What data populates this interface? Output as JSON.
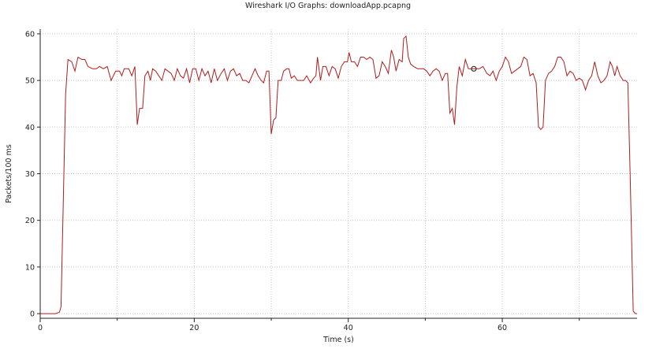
{
  "window": {
    "title": "Wireshark I/O Graphs: downloadApp.pcapng"
  },
  "colors": {
    "series": "#b01c1c",
    "grid": "#c8c8c8",
    "axis": "#222222",
    "background": "#ffffff"
  },
  "chart_data": {
    "type": "line",
    "title": "Wireshark I/O Graphs: downloadApp.pcapng",
    "xlabel": "Time (s)",
    "ylabel": "Packets/100 ms",
    "xlim": [
      0,
      77.5
    ],
    "ylim": [
      -1,
      61
    ],
    "xticks": [
      0,
      20,
      40,
      60
    ],
    "yticks": [
      0,
      10,
      20,
      30,
      40,
      50,
      60
    ],
    "grid": true,
    "legend": "none",
    "series": [
      {
        "color": "#b01c1c",
        "points": [
          [
            0,
            0
          ],
          [
            1,
            0
          ],
          [
            2,
            0
          ],
          [
            2.5,
            0.3
          ],
          [
            2.7,
            1.5
          ],
          [
            3.3,
            47
          ],
          [
            3.6,
            54.5
          ],
          [
            4.1,
            54
          ],
          [
            4.5,
            52
          ],
          [
            4.9,
            55
          ],
          [
            5.4,
            54.5
          ],
          [
            5.8,
            54.5
          ],
          [
            6.2,
            53
          ],
          [
            6.8,
            52.5
          ],
          [
            7.3,
            52.5
          ],
          [
            7.7,
            53
          ],
          [
            8.2,
            52.5
          ],
          [
            8.7,
            53
          ],
          [
            9.2,
            50
          ],
          [
            9.8,
            52
          ],
          [
            10.3,
            52
          ],
          [
            10.6,
            51
          ],
          [
            10.9,
            52.5
          ],
          [
            11.5,
            52.5
          ],
          [
            11.9,
            51
          ],
          [
            12.3,
            53
          ],
          [
            12.6,
            40.5
          ],
          [
            12.9,
            44
          ],
          [
            13.3,
            44
          ],
          [
            13.6,
            51
          ],
          [
            14,
            52
          ],
          [
            14.3,
            50
          ],
          [
            14.6,
            52.5
          ],
          [
            15,
            52
          ],
          [
            15.4,
            51
          ],
          [
            15.8,
            50
          ],
          [
            16.2,
            52.5
          ],
          [
            16.6,
            52
          ],
          [
            17,
            51.5
          ],
          [
            17.4,
            50
          ],
          [
            17.8,
            52.5
          ],
          [
            18.2,
            51
          ],
          [
            18.6,
            50.5
          ],
          [
            19,
            52.5
          ],
          [
            19.4,
            49.5
          ],
          [
            19.8,
            52.5
          ],
          [
            20.2,
            52.5
          ],
          [
            20.6,
            50
          ],
          [
            21,
            52.5
          ],
          [
            21.4,
            51
          ],
          [
            21.8,
            52
          ],
          [
            22.2,
            49.5
          ],
          [
            22.6,
            52.5
          ],
          [
            23,
            50
          ],
          [
            23.5,
            51.5
          ],
          [
            23.9,
            52.5
          ],
          [
            24.3,
            50
          ],
          [
            24.7,
            52
          ],
          [
            25.1,
            52.5
          ],
          [
            25.5,
            51
          ],
          [
            25.9,
            51.5
          ],
          [
            26.3,
            50
          ],
          [
            26.7,
            50
          ],
          [
            27.1,
            49.5
          ],
          [
            27.5,
            51
          ],
          [
            27.9,
            52.5
          ],
          [
            28.3,
            51
          ],
          [
            28.7,
            50
          ],
          [
            29,
            49.5
          ],
          [
            29.4,
            52
          ],
          [
            29.7,
            52
          ],
          [
            30,
            38.5
          ],
          [
            30.3,
            41.5
          ],
          [
            30.6,
            42
          ],
          [
            30.9,
            50
          ],
          [
            31.3,
            50
          ],
          [
            31.6,
            52
          ],
          [
            32,
            52.5
          ],
          [
            32.3,
            52.5
          ],
          [
            32.6,
            50.5
          ],
          [
            33,
            51
          ],
          [
            33.4,
            50
          ],
          [
            33.8,
            50
          ],
          [
            34.2,
            50
          ],
          [
            34.6,
            51
          ],
          [
            35.1,
            49.5
          ],
          [
            35.5,
            50.5
          ],
          [
            35.8,
            51
          ],
          [
            36,
            55
          ],
          [
            36.4,
            50
          ],
          [
            36.7,
            53
          ],
          [
            37.1,
            53
          ],
          [
            37.5,
            51
          ],
          [
            37.9,
            53
          ],
          [
            38.3,
            52.5
          ],
          [
            38.7,
            50.5
          ],
          [
            39.1,
            53
          ],
          [
            39.5,
            54
          ],
          [
            39.9,
            54
          ],
          [
            40.1,
            56
          ],
          [
            40.4,
            54
          ],
          [
            40.8,
            54
          ],
          [
            41.2,
            53
          ],
          [
            41.6,
            55
          ],
          [
            42,
            55
          ],
          [
            42.4,
            54.5
          ],
          [
            42.8,
            55
          ],
          [
            43.2,
            54.5
          ],
          [
            43.6,
            50.5
          ],
          [
            44,
            51
          ],
          [
            44.4,
            54
          ],
          [
            44.8,
            53
          ],
          [
            45.2,
            51.5
          ],
          [
            45.6,
            56.5
          ],
          [
            45.9,
            55
          ],
          [
            46.2,
            52
          ],
          [
            46.6,
            54.5
          ],
          [
            47,
            54
          ],
          [
            47.2,
            59
          ],
          [
            47.5,
            59.5
          ],
          [
            47.8,
            55
          ],
          [
            48.1,
            53.5
          ],
          [
            48.5,
            53
          ],
          [
            49,
            52.5
          ],
          [
            49.4,
            52.5
          ],
          [
            49.8,
            52.5
          ],
          [
            50.2,
            52
          ],
          [
            50.6,
            51
          ],
          [
            51,
            52
          ],
          [
            51.4,
            52.5
          ],
          [
            51.8,
            52
          ],
          [
            52.2,
            50
          ],
          [
            52.6,
            51.5
          ],
          [
            52.9,
            51.5
          ],
          [
            53.2,
            43
          ],
          [
            53.5,
            44
          ],
          [
            53.8,
            40.5
          ],
          [
            54.1,
            48.5
          ],
          [
            54.4,
            53
          ],
          [
            54.8,
            51
          ],
          [
            55.2,
            54.5
          ],
          [
            55.6,
            52.5
          ],
          [
            56,
            52.5
          ],
          [
            56.5,
            52.5
          ],
          [
            57,
            52.5
          ],
          [
            57.5,
            53
          ],
          [
            58,
            51.5
          ],
          [
            58.4,
            51
          ],
          [
            58.8,
            52
          ],
          [
            59.2,
            50
          ],
          [
            59.6,
            52
          ],
          [
            60,
            53
          ],
          [
            60.4,
            55
          ],
          [
            60.8,
            54
          ],
          [
            61.2,
            51.5
          ],
          [
            61.6,
            52
          ],
          [
            62,
            52.5
          ],
          [
            62.4,
            53
          ],
          [
            62.8,
            55
          ],
          [
            63.2,
            54.5
          ],
          [
            63.6,
            51
          ],
          [
            64,
            51.5
          ],
          [
            64.4,
            49.5
          ],
          [
            64.7,
            40
          ],
          [
            65,
            39.5
          ],
          [
            65.3,
            40
          ],
          [
            65.6,
            50
          ],
          [
            66,
            51.5
          ],
          [
            66.4,
            52
          ],
          [
            66.8,
            53
          ],
          [
            67.2,
            55
          ],
          [
            67.6,
            55
          ],
          [
            68,
            54
          ],
          [
            68.4,
            51
          ],
          [
            68.8,
            52
          ],
          [
            69.2,
            51.5
          ],
          [
            69.6,
            50
          ],
          [
            70,
            50.5
          ],
          [
            70.4,
            50
          ],
          [
            70.8,
            48
          ],
          [
            71.2,
            50
          ],
          [
            71.6,
            51
          ],
          [
            72,
            54
          ],
          [
            72.4,
            51
          ],
          [
            72.8,
            49.5
          ],
          [
            73.2,
            50
          ],
          [
            73.6,
            51
          ],
          [
            74,
            54
          ],
          [
            74.3,
            53
          ],
          [
            74.6,
            51
          ],
          [
            74.9,
            53
          ],
          [
            75.3,
            51
          ],
          [
            75.7,
            50
          ],
          [
            76,
            50
          ],
          [
            76.3,
            49.5
          ],
          [
            76.6,
            30
          ],
          [
            77,
            0.5
          ],
          [
            77.3,
            0
          ],
          [
            77.5,
            0
          ]
        ]
      }
    ],
    "marker": {
      "x": 56.3,
      "y": 52.5
    }
  }
}
